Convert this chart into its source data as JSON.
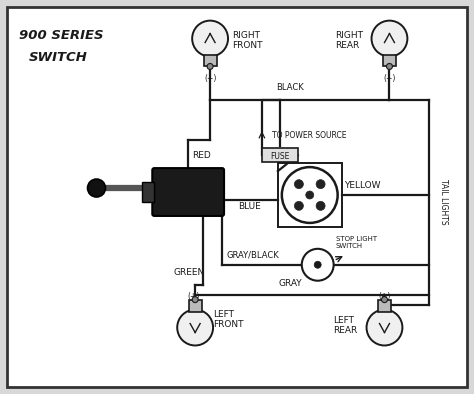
{
  "bg_color": "#ffffff",
  "border_color": "#333333",
  "line_color": "#1a1a1a",
  "text_color": "#1a1a1a",
  "fig_bg": "#d8d8d8",
  "title_line1": "900 SERIES",
  "title_line2": "SWITCH",
  "wire_labels": {
    "red": "RED",
    "black": "BLACK",
    "blue": "BLUE",
    "yellow": "YELLOW",
    "green": "GREEN",
    "gray": "GRAY",
    "gray_black": "GRAY/BLACK"
  },
  "tail_lights_label": "TAIL LIGHTS",
  "power_source_label": "TO POWER SOURCE",
  "stop_light_switch_label": "STOP LIGHT\nSWITCH",
  "fuse_label": "FUSE",
  "right_front_label": "RIGHT\nFRONT",
  "right_rear_label": "RIGHT\nREAR",
  "left_front_label": "LEFT\nFRONT",
  "left_rear_label": "LEFT\nREAR"
}
